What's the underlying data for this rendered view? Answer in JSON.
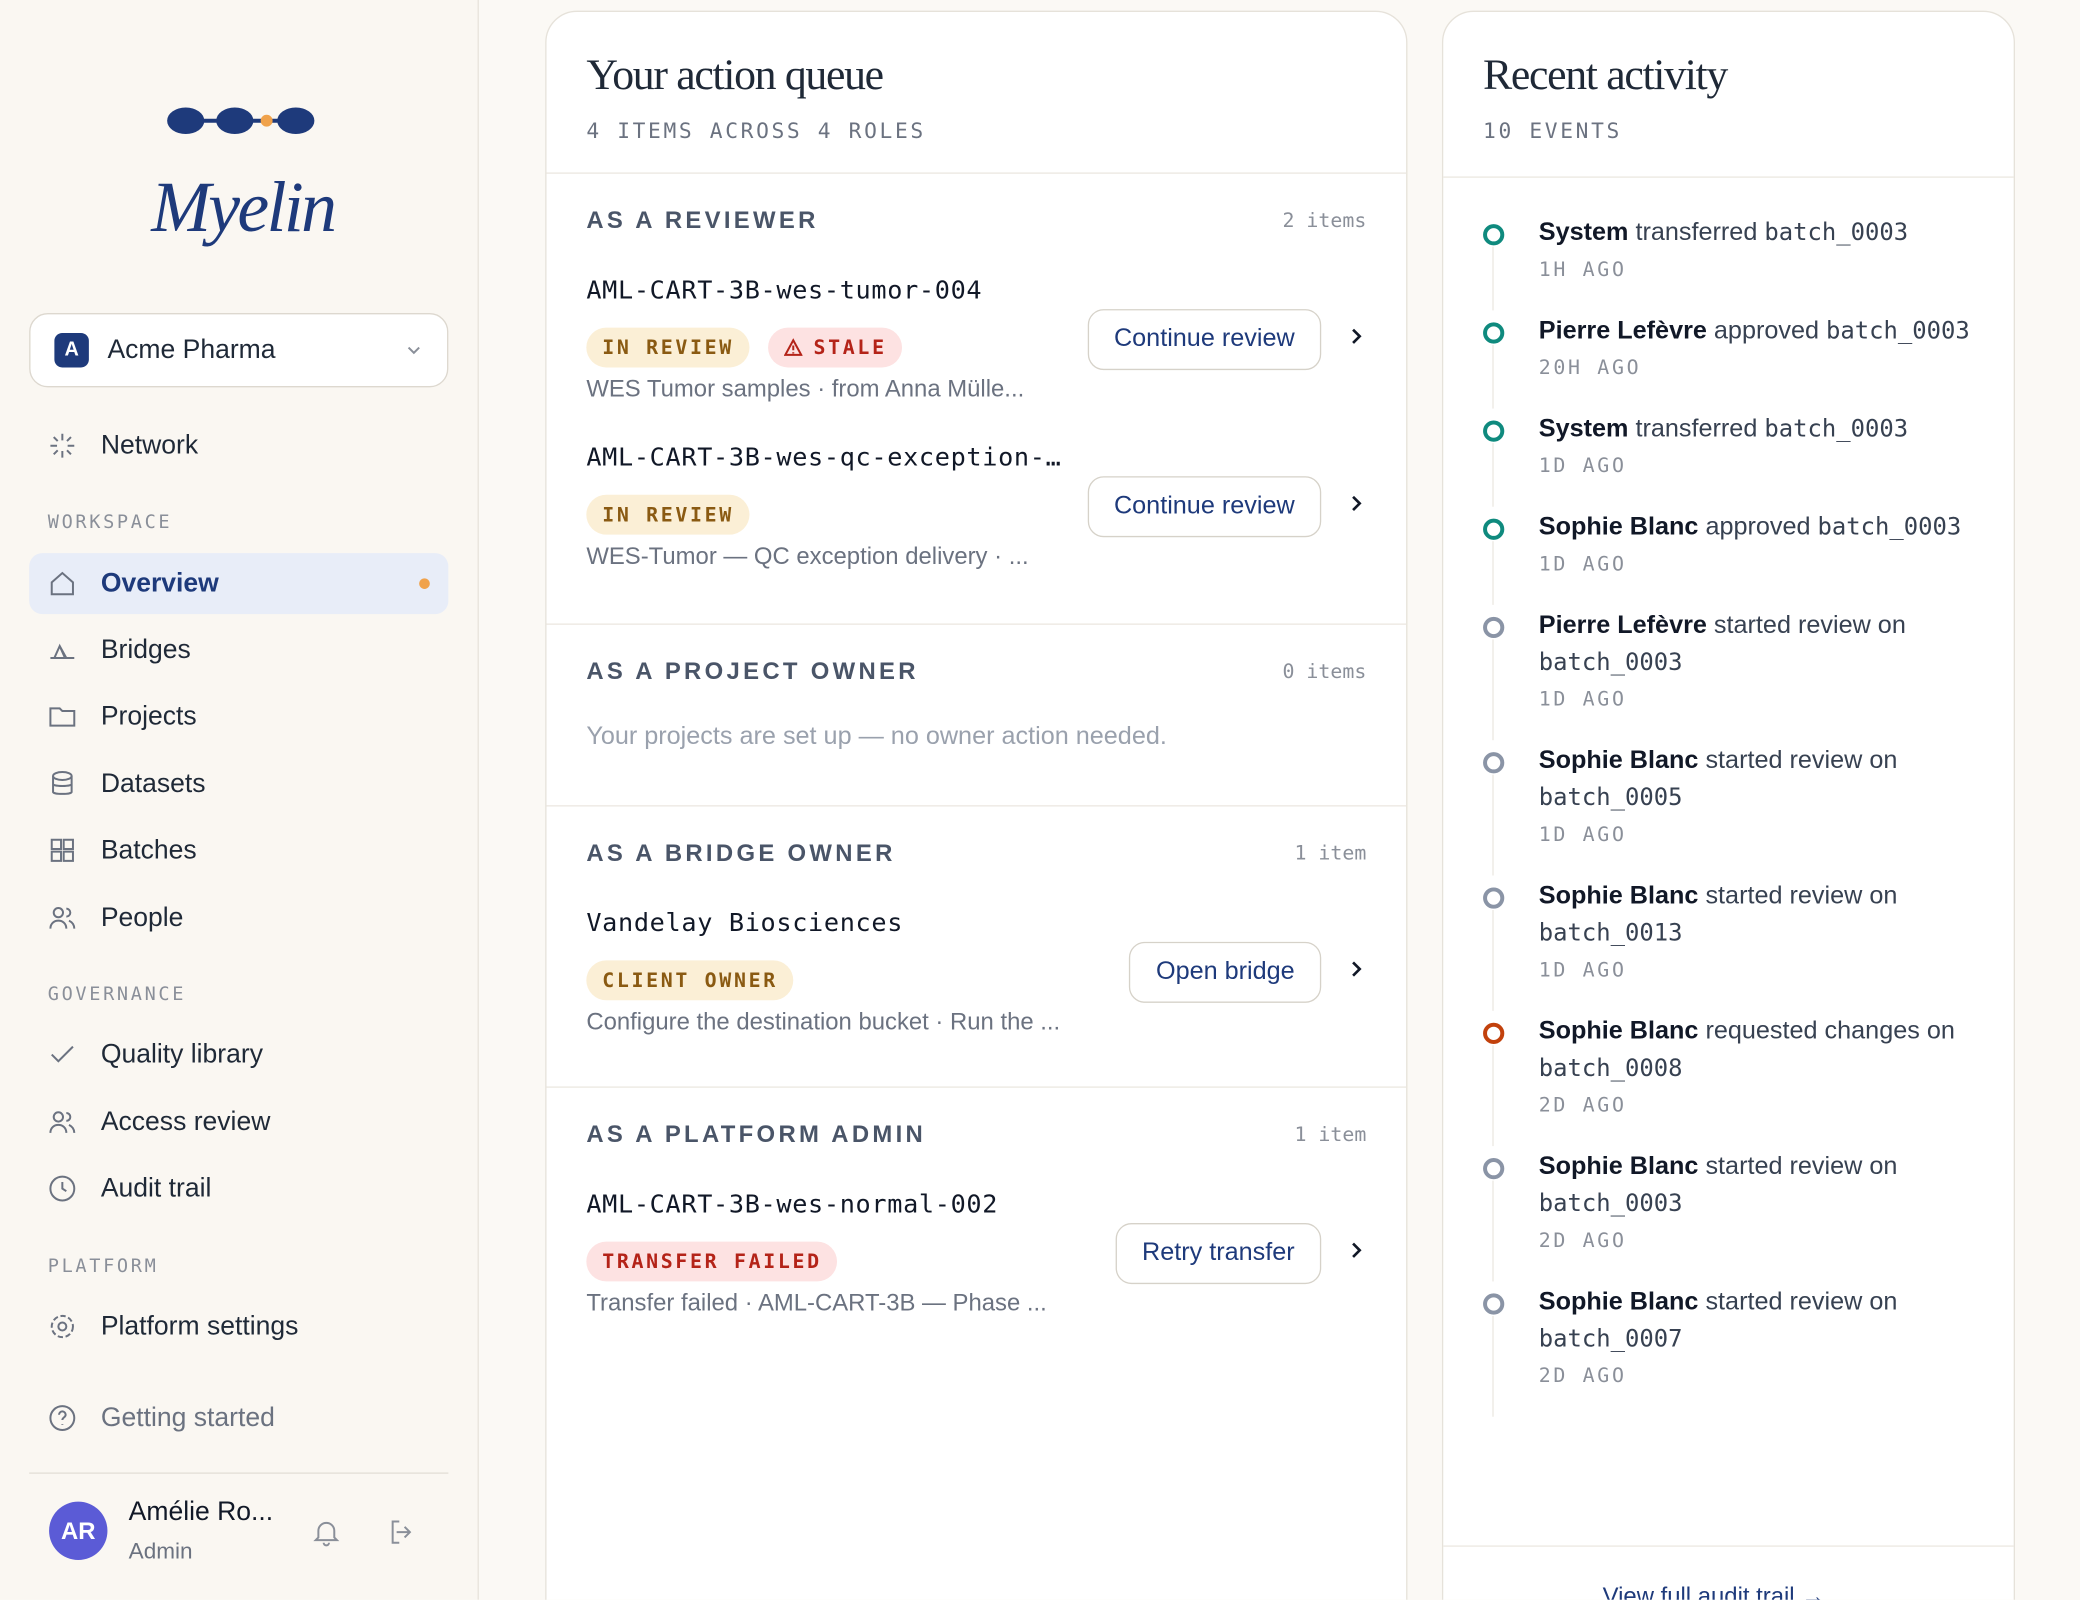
{
  "sidebar": {
    "brand": "Myelin",
    "org": {
      "initial": "A",
      "name": "Acme Pharma"
    },
    "top_nav": [
      "Network"
    ],
    "groups": [
      {
        "heading": "WORKSPACE",
        "items": [
          "Overview",
          "Bridges",
          "Projects",
          "Datasets",
          "Batches",
          "People"
        ]
      },
      {
        "heading": "GOVERNANCE",
        "items": [
          "Quality library",
          "Access review",
          "Audit trail"
        ]
      },
      {
        "heading": "PLATFORM",
        "items": [
          "Platform settings"
        ]
      }
    ],
    "getting_started": "Getting started",
    "user": {
      "initials": "AR",
      "name": "Amélie Ro...",
      "role": "Admin"
    }
  },
  "queue": {
    "title": "Your action queue",
    "subtitle": "4 ITEMS ACROSS 4 ROLES",
    "sections": [
      {
        "heading": "AS A REVIEWER",
        "count": "2 items",
        "items": [
          {
            "name": "AML-CART-3B-wes-tumor-004",
            "badges": [
              {
                "text": "IN REVIEW",
                "color": "#8a5a12",
                "background": "#fbefd6"
              },
              {
                "text": "STALE",
                "color": "#b42318",
                "background": "#fde2e2"
              }
            ],
            "description": "WES Tumor samples · from Anna Mülle...",
            "action": "Continue review"
          },
          {
            "name": "AML-CART-3B-wes-qc-exception-…",
            "badges": [
              {
                "text": "IN REVIEW",
                "color": "#8a5a12",
                "background": "#fbefd6"
              }
            ],
            "description": "WES-Tumor — QC exception delivery · ...",
            "action": "Continue review"
          }
        ]
      },
      {
        "heading": "AS A PROJECT OWNER",
        "count": "0 items",
        "empty": "Your projects are set up — no owner action needed.",
        "items": []
      },
      {
        "heading": "AS A BRIDGE OWNER",
        "count": "1 item",
        "items": [
          {
            "name": "Vandelay Biosciences",
            "badges": [
              {
                "text": "CLIENT OWNER",
                "color": "#8a5a12",
                "background": "#fbefd6"
              }
            ],
            "description": "Configure the destination bucket · Run the ...",
            "action": "Open bridge"
          }
        ]
      },
      {
        "heading": "AS A PLATFORM ADMIN",
        "count": "1 item",
        "items": [
          {
            "name": "AML-CART-3B-wes-normal-002",
            "badges": [
              {
                "text": "TRANSFER FAILED",
                "color": "#b42318",
                "background": "#fde2e2"
              }
            ],
            "description": "Transfer failed · AML-CART-3B — Phase ...",
            "action": "Retry transfer"
          }
        ]
      }
    ]
  },
  "activity": {
    "title": "Recent activity",
    "subtitle": "10 EVENTS",
    "events": [
      {
        "actor": "System",
        "action": "transferred",
        "target": "batch_0003",
        "time": "1H AGO",
        "color": "#0f8a7e"
      },
      {
        "actor": "Pierre Lefèvre",
        "action": "approved",
        "target": "batch_0003",
        "time": "20H AGO",
        "color": "#0f8a7e"
      },
      {
        "actor": "System",
        "action": "transferred",
        "target": "batch_0003",
        "time": "1D AGO",
        "color": "#0f8a7e"
      },
      {
        "actor": "Sophie Blanc",
        "action": "approved",
        "target": "batch_0003",
        "time": "1D AGO",
        "color": "#0f8a7e"
      },
      {
        "actor": "Pierre Lefèvre",
        "action": "started review on",
        "target": "batch_0003",
        "time": "1D AGO",
        "color": "#8a94a6"
      },
      {
        "actor": "Sophie Blanc",
        "action": "started review on",
        "target": "batch_0005",
        "time": "1D AGO",
        "color": "#8a94a6"
      },
      {
        "actor": "Sophie Blanc",
        "action": "started review on",
        "target": "batch_0013",
        "time": "1D AGO",
        "color": "#8a94a6"
      },
      {
        "actor": "Sophie Blanc",
        "action": "requested changes on",
        "target": "batch_0008",
        "time": "2D AGO",
        "color": "#c2410c"
      },
      {
        "actor": "Sophie Blanc",
        "action": "started review on",
        "target": "batch_0003",
        "time": "2D AGO",
        "color": "#8a94a6"
      },
      {
        "actor": "Sophie Blanc",
        "action": "started review on",
        "target": "batch_0007",
        "time": "2D AGO",
        "color": "#8a94a6"
      }
    ],
    "footer": "View full audit trail →"
  }
}
